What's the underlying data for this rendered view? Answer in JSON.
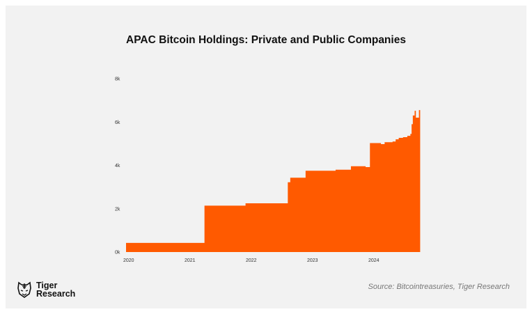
{
  "chart_data": {
    "type": "area",
    "title": "APAC Bitcoin Holdings: Private and Public Companies",
    "xlabel": "",
    "ylabel": "",
    "x_ticks": [
      "2020",
      "2021",
      "2022",
      "2023",
      "2024"
    ],
    "y_ticks": [
      "0k",
      "2k",
      "4k",
      "6k",
      "8k"
    ],
    "xlim": [
      2020,
      2024.8
    ],
    "ylim": [
      0,
      8000
    ],
    "grid": false,
    "color": "#ff5a00",
    "step": true,
    "x": [
      2020.0,
      2021.28,
      2021.95,
      2022.64,
      2022.68,
      2022.93,
      2023.42,
      2023.67,
      2023.91,
      2023.98,
      2024.16,
      2024.22,
      2024.35,
      2024.4,
      2024.45,
      2024.52,
      2024.59,
      2024.64,
      2024.66,
      2024.68,
      2024.71,
      2024.73,
      2024.78,
      2024.8
    ],
    "values": [
      420,
      2140,
      2250,
      3220,
      3430,
      3750,
      3800,
      3960,
      3920,
      5030,
      4980,
      5070,
      5100,
      5200,
      5270,
      5300,
      5360,
      5450,
      5900,
      6300,
      6520,
      6200,
      6550,
      6600
    ]
  },
  "brand": {
    "name_line1": "Tiger",
    "name_line2": "Research"
  },
  "source": "Source: Bitcointreasuries, Tiger Research"
}
